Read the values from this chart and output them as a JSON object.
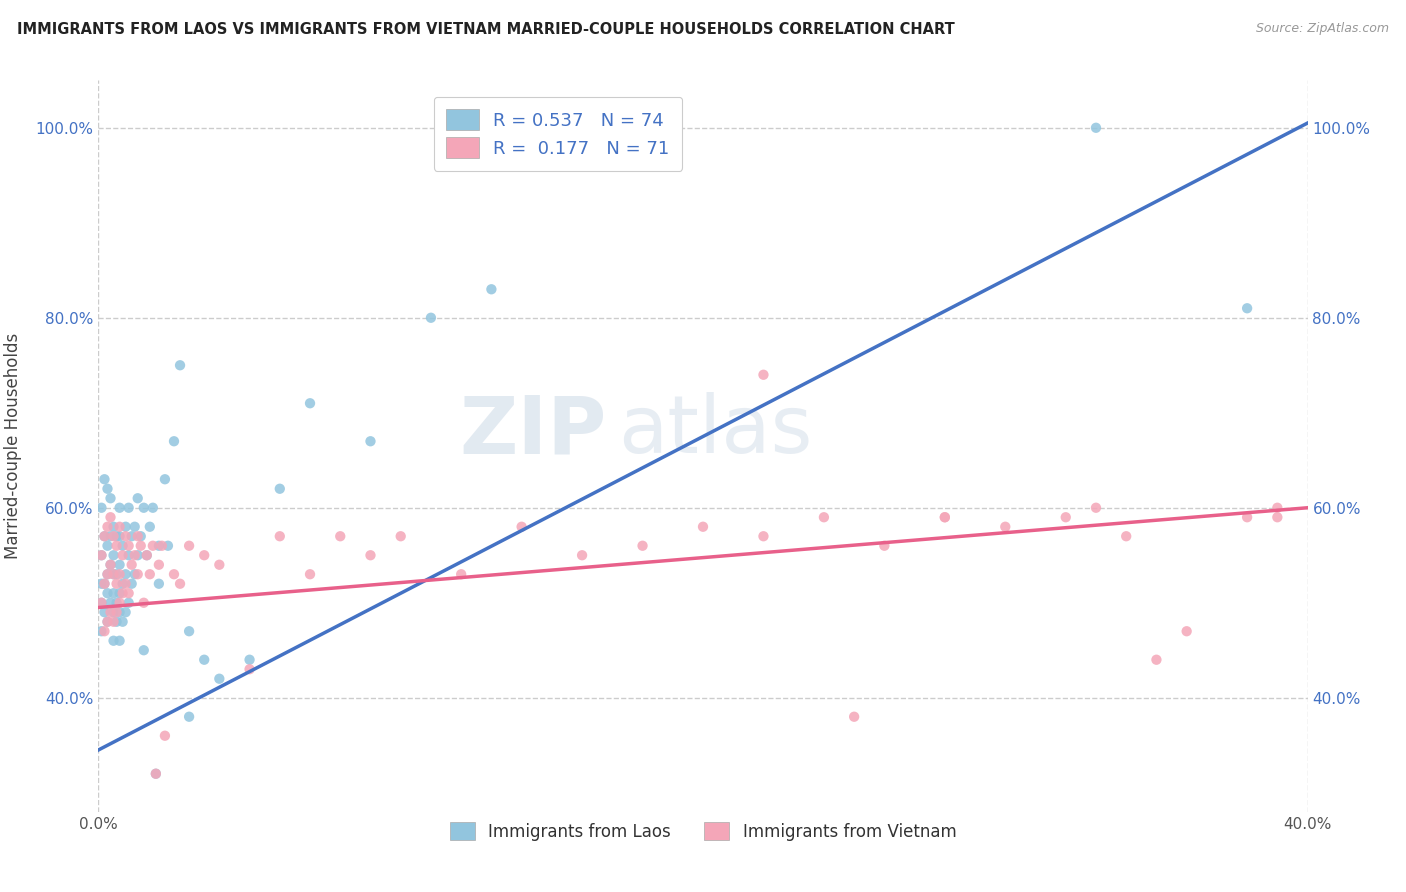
{
  "title": "IMMIGRANTS FROM LAOS VS IMMIGRANTS FROM VIETNAM MARRIED-COUPLE HOUSEHOLDS CORRELATION CHART",
  "source": "Source: ZipAtlas.com",
  "xlabel_laos": "Immigrants from Laos",
  "xlabel_vietnam": "Immigrants from Vietnam",
  "ylabel": "Married-couple Households",
  "xmin": 0.0,
  "xmax": 0.4,
  "ymin": 0.28,
  "ymax": 1.05,
  "R_laos": 0.537,
  "N_laos": 74,
  "R_vietnam": 0.177,
  "N_vietnam": 71,
  "color_laos": "#92C5DE",
  "color_vietnam": "#F4A6B8",
  "color_laos_line": "#4472C4",
  "color_vietnam_line": "#E8608A",
  "color_text_blue": "#4472C4",
  "watermark_color": "#d0dce8",
  "background_color": "#FFFFFF",
  "grid_color": "#CCCCCC",
  "blue_line_x0": 0.0,
  "blue_line_y0": 0.345,
  "blue_line_x1": 0.4,
  "blue_line_y1": 1.005,
  "pink_line_x0": 0.0,
  "pink_line_y0": 0.495,
  "pink_line_x1": 0.4,
  "pink_line_y1": 0.6,
  "laos_x": [
    0.001,
    0.001,
    0.001,
    0.001,
    0.001,
    0.002,
    0.002,
    0.002,
    0.002,
    0.003,
    0.003,
    0.003,
    0.003,
    0.003,
    0.004,
    0.004,
    0.004,
    0.004,
    0.005,
    0.005,
    0.005,
    0.005,
    0.005,
    0.005,
    0.006,
    0.006,
    0.006,
    0.006,
    0.007,
    0.007,
    0.007,
    0.007,
    0.007,
    0.007,
    0.008,
    0.008,
    0.008,
    0.009,
    0.009,
    0.009,
    0.01,
    0.01,
    0.01,
    0.011,
    0.011,
    0.012,
    0.012,
    0.013,
    0.013,
    0.014,
    0.015,
    0.015,
    0.016,
    0.017,
    0.018,
    0.019,
    0.02,
    0.02,
    0.022,
    0.023,
    0.025,
    0.027,
    0.03,
    0.03,
    0.035,
    0.04,
    0.05,
    0.06,
    0.07,
    0.09,
    0.11,
    0.13,
    0.33,
    0.38
  ],
  "laos_y": [
    0.47,
    0.5,
    0.52,
    0.55,
    0.6,
    0.49,
    0.52,
    0.57,
    0.63,
    0.48,
    0.51,
    0.53,
    0.56,
    0.62,
    0.5,
    0.54,
    0.57,
    0.61,
    0.46,
    0.49,
    0.51,
    0.53,
    0.55,
    0.58,
    0.48,
    0.5,
    0.53,
    0.57,
    0.46,
    0.49,
    0.51,
    0.54,
    0.57,
    0.6,
    0.48,
    0.52,
    0.56,
    0.49,
    0.53,
    0.58,
    0.5,
    0.55,
    0.6,
    0.52,
    0.57,
    0.53,
    0.58,
    0.55,
    0.61,
    0.57,
    0.45,
    0.6,
    0.55,
    0.58,
    0.6,
    0.32,
    0.52,
    0.56,
    0.63,
    0.56,
    0.67,
    0.75,
    0.47,
    0.38,
    0.44,
    0.42,
    0.44,
    0.62,
    0.71,
    0.67,
    0.8,
    0.83,
    1.0,
    0.81
  ],
  "vietnam_x": [
    0.001,
    0.001,
    0.002,
    0.002,
    0.002,
    0.003,
    0.003,
    0.003,
    0.004,
    0.004,
    0.004,
    0.005,
    0.005,
    0.005,
    0.006,
    0.006,
    0.006,
    0.007,
    0.007,
    0.007,
    0.008,
    0.008,
    0.009,
    0.009,
    0.01,
    0.01,
    0.011,
    0.012,
    0.013,
    0.013,
    0.014,
    0.015,
    0.016,
    0.017,
    0.018,
    0.019,
    0.02,
    0.021,
    0.022,
    0.025,
    0.027,
    0.03,
    0.035,
    0.04,
    0.05,
    0.06,
    0.07,
    0.08,
    0.09,
    0.1,
    0.12,
    0.14,
    0.16,
    0.18,
    0.2,
    0.22,
    0.24,
    0.26,
    0.28,
    0.3,
    0.32,
    0.34,
    0.36,
    0.38,
    0.39,
    0.39,
    0.33,
    0.35,
    0.28,
    0.25,
    0.22
  ],
  "vietnam_y": [
    0.5,
    0.55,
    0.47,
    0.52,
    0.57,
    0.48,
    0.53,
    0.58,
    0.49,
    0.54,
    0.59,
    0.48,
    0.53,
    0.57,
    0.49,
    0.52,
    0.56,
    0.5,
    0.53,
    0.58,
    0.51,
    0.55,
    0.52,
    0.57,
    0.51,
    0.56,
    0.54,
    0.55,
    0.53,
    0.57,
    0.56,
    0.5,
    0.55,
    0.53,
    0.56,
    0.32,
    0.54,
    0.56,
    0.36,
    0.53,
    0.52,
    0.56,
    0.55,
    0.54,
    0.43,
    0.57,
    0.53,
    0.57,
    0.55,
    0.57,
    0.53,
    0.58,
    0.55,
    0.56,
    0.58,
    0.57,
    0.59,
    0.56,
    0.59,
    0.58,
    0.59,
    0.57,
    0.47,
    0.59,
    0.6,
    0.59,
    0.6,
    0.44,
    0.59,
    0.38,
    0.74
  ]
}
